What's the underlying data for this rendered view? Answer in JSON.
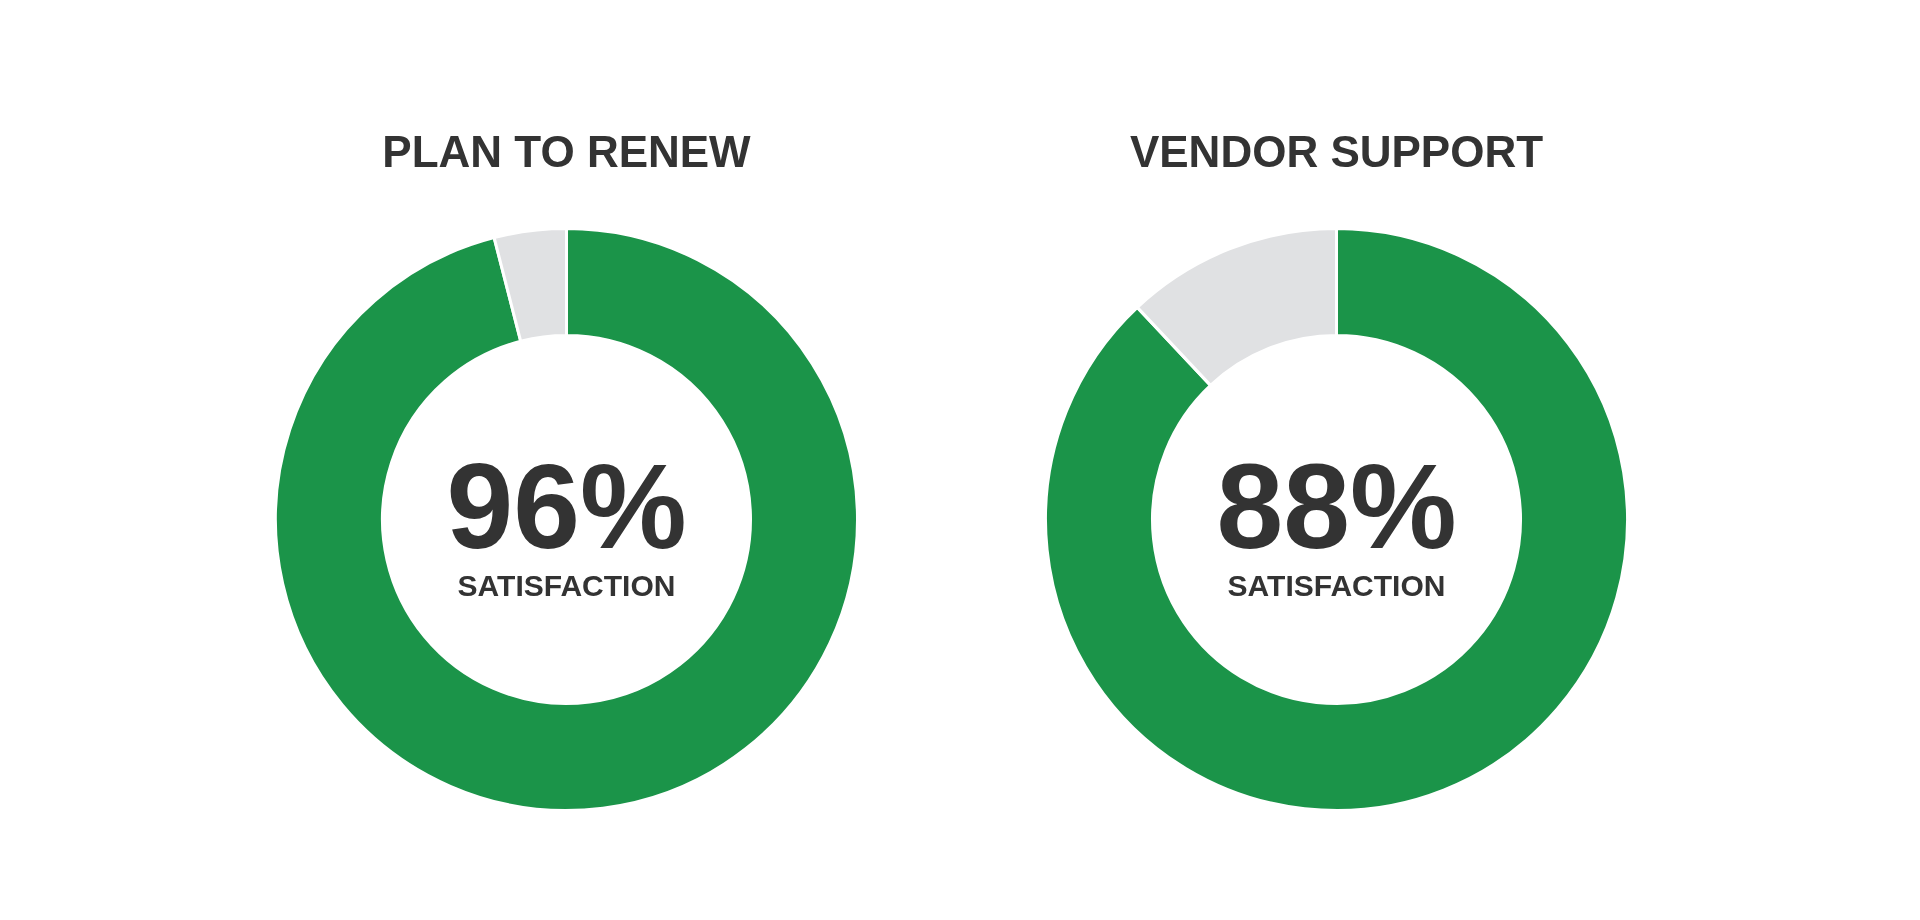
{
  "chart_data": [
    {
      "type": "donut",
      "title": "PLAN TO RENEW",
      "categories": [
        null,
        null
      ],
      "values": [
        96,
        4
      ],
      "colors": [
        "#1b9449",
        "#e0e1e3"
      ],
      "value_labels": [
        "96%",
        null
      ],
      "annotations": [
        "SATISFACTION"
      ]
    },
    {
      "type": "donut",
      "title": "VENDOR SUPPORT",
      "categories": [
        null,
        null
      ],
      "values": [
        88,
        12
      ],
      "colors": [
        "#1b9449",
        "#e0e1e3"
      ],
      "value_labels": [
        "88%",
        null
      ],
      "annotations": [
        "SATISFACTION"
      ]
    }
  ]
}
